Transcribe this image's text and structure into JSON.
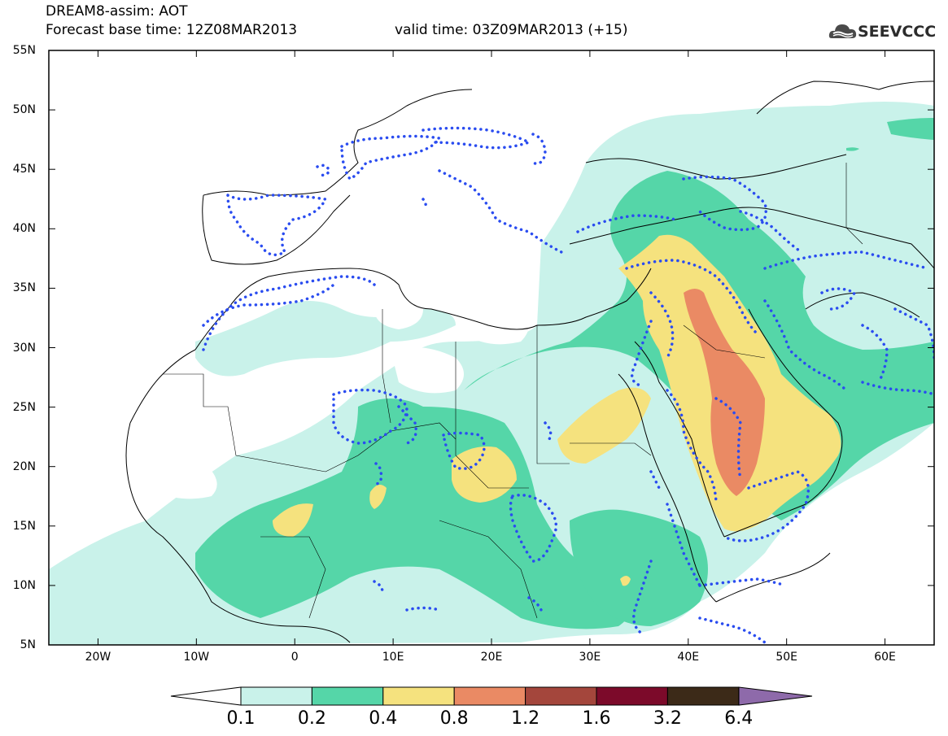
{
  "header": {
    "title_line1": "DREAM8-assim: AOT",
    "title_line2": "Forecast base time: 12Z08MAR2013",
    "valid_text": "valid time: 03Z09MAR2013 (+15)",
    "logo_text": "SEEVCCC"
  },
  "map": {
    "lat_labels": [
      "55N",
      "50N",
      "45N",
      "40N",
      "35N",
      "30N",
      "25N",
      "20N",
      "15N",
      "10N",
      "5N"
    ],
    "lon_labels": [
      "20W",
      "10W",
      "0",
      "10E",
      "20E",
      "30E",
      "40E",
      "50E",
      "60E"
    ],
    "lat_range": [
      5,
      55
    ],
    "lon_range": [
      -25,
      65
    ],
    "field": "AOT"
  },
  "colorbar": {
    "levels": [
      "0.1",
      "0.2",
      "0.4",
      "0.8",
      "1.2",
      "1.6",
      "3.2",
      "6.4"
    ],
    "colors": {
      "c1": "#c9f2ea",
      "c2": "#55d6a8",
      "c3": "#f5e27e",
      "c4": "#ea8a64",
      "c5": "#a4463c",
      "c6": "#7c0a2a",
      "c7": "#3c2a18",
      "c8": "#8e6aaa"
    }
  }
}
